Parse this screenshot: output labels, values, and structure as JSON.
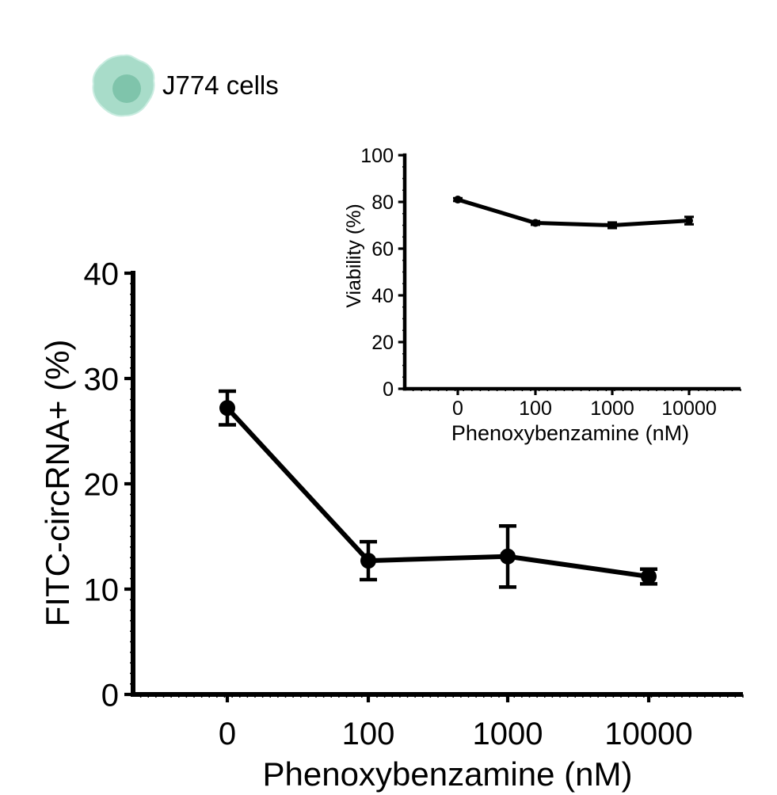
{
  "legend": {
    "cell_label": "J774 cells",
    "icon": "macrophage-cell-icon",
    "icon_color": "#a8dcc9",
    "icon_nucleus_color": "#7fc4ab"
  },
  "colors": {
    "ink": "#000000",
    "background": "#ffffff"
  },
  "chart_data": [
    {
      "id": "main",
      "type": "line",
      "title": "",
      "xlabel": "Phenoxybenzamine (nM)",
      "ylabel": "FITC-circRNA+ (%)",
      "categories": [
        "0",
        "100",
        "1000",
        "10000"
      ],
      "ylim": [
        0,
        40
      ],
      "yticks": [
        "0",
        "10",
        "20",
        "30",
        "40"
      ],
      "grid": false,
      "series": [
        {
          "values": [
            27.2,
            12.7,
            13.1,
            11.2
          ],
          "error": [
            1.6,
            1.8,
            2.9,
            0.7
          ]
        }
      ]
    },
    {
      "id": "inset",
      "type": "line",
      "title": "",
      "xlabel": "Phenoxybenzamine (nM)",
      "ylabel": "Viability (%)",
      "categories": [
        "0",
        "100",
        "1000",
        "10000"
      ],
      "ylim": [
        0,
        100
      ],
      "yticks": [
        "0",
        "20",
        "40",
        "60",
        "80",
        "100"
      ],
      "grid": false,
      "series": [
        {
          "values": [
            81,
            71,
            70,
            72
          ],
          "error": [
            0.6,
            0.8,
            1.2,
            1.6
          ]
        }
      ]
    }
  ]
}
